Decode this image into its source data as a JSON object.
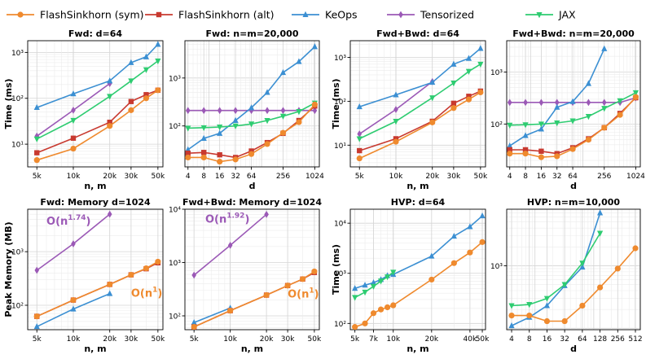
{
  "legend": [
    {
      "key": "sym",
      "label": "FlashSinkhorn (sym)",
      "color": "#ef8a2e",
      "marker": "circle"
    },
    {
      "key": "alt",
      "label": "FlashSinkhorn (alt)",
      "color": "#c8392f",
      "marker": "square"
    },
    {
      "key": "keops",
      "label": "KeOps",
      "color": "#3b8fd2",
      "marker": "triangle-up"
    },
    {
      "key": "tens",
      "label": "Tensorized",
      "color": "#9b59b6",
      "marker": "diamond"
    },
    {
      "key": "jax",
      "label": "JAX",
      "color": "#2ecc71",
      "marker": "triangle-down"
    }
  ],
  "chart_data": [
    {
      "type": "line",
      "title": "Fwd: d=64",
      "xlabel": "n, m",
      "ylabel": "Time (ms)",
      "xscale": "log",
      "yscale": "log",
      "xlim": [
        4200,
        55000
      ],
      "ylim": [
        3.2,
        1800
      ],
      "xticks": [
        {
          "v": 5000,
          "label": "5k"
        },
        {
          "v": 10000,
          "label": "10k"
        },
        {
          "v": 20000,
          "label": "20k"
        },
        {
          "v": 30000,
          "label": "30k"
        },
        {
          "v": 50000,
          "label": "50k"
        }
      ],
      "yticks": [
        {
          "v": 10,
          "label": "10¹"
        },
        {
          "v": 100,
          "label": "10²"
        },
        {
          "v": 1000,
          "label": "10³"
        }
      ],
      "series": [
        {
          "key": "tens",
          "x": [
            5000,
            10000,
            20000
          ],
          "y": [
            15,
            55,
            210
          ]
        },
        {
          "key": "keops",
          "x": [
            5000,
            10000,
            20000,
            30000,
            40000,
            50000
          ],
          "y": [
            63,
            125,
            240,
            600,
            800,
            1500
          ]
        },
        {
          "key": "jax",
          "x": [
            5000,
            10000,
            20000,
            30000,
            40000,
            50000
          ],
          "y": [
            13,
            33,
            110,
            240,
            420,
            650
          ]
        },
        {
          "key": "alt",
          "x": [
            5000,
            10000,
            20000,
            30000,
            40000,
            50000
          ],
          "y": [
            6.5,
            13.5,
            30,
            85,
            120,
            150
          ]
        },
        {
          "key": "sym",
          "x": [
            5000,
            10000,
            20000,
            30000,
            40000,
            50000
          ],
          "y": [
            4.5,
            8,
            25,
            55,
            100,
            150
          ]
        }
      ]
    },
    {
      "type": "line",
      "title": "Fwd: n=m=20,000",
      "xlabel": "d",
      "ylabel": "",
      "xscale": "log",
      "yscale": "log",
      "xlim": [
        3.5,
        1250
      ],
      "ylim": [
        14,
        6000
      ],
      "xticks": [
        {
          "v": 4,
          "label": "4"
        },
        {
          "v": 8,
          "label": "8"
        },
        {
          "v": 16,
          "label": "16"
        },
        {
          "v": 32,
          "label": "32"
        },
        {
          "v": 64,
          "label": "64"
        },
        {
          "v": 256,
          "label": "256"
        },
        {
          "v": 1024,
          "label": "1024"
        }
      ],
      "yticks": [
        {
          "v": 100,
          "label": "10²"
        },
        {
          "v": 1000,
          "label": "10³"
        }
      ],
      "series": [
        {
          "key": "tens",
          "x": [
            4,
            8,
            16,
            32,
            64,
            128,
            256,
            512,
            1024
          ],
          "y": [
            210,
            210,
            210,
            210,
            210,
            210,
            210,
            210,
            210
          ]
        },
        {
          "key": "keops",
          "x": [
            4,
            8,
            16,
            32,
            64,
            128,
            256,
            512,
            1024
          ],
          "y": [
            32,
            55,
            70,
            130,
            240,
            500,
            1300,
            2200,
            4500
          ]
        },
        {
          "key": "jax",
          "x": [
            4,
            8,
            16,
            32,
            64,
            128,
            256,
            512,
            1024
          ],
          "y": [
            90,
            92,
            95,
            100,
            110,
            130,
            160,
            200,
            300
          ]
        },
        {
          "key": "alt",
          "x": [
            4,
            8,
            16,
            32,
            64,
            128,
            256,
            512,
            1024
          ],
          "y": [
            27,
            28,
            25,
            22,
            30,
            45,
            70,
            130,
            260
          ]
        },
        {
          "key": "sym",
          "x": [
            4,
            8,
            16,
            32,
            64,
            128,
            256,
            512,
            1024
          ],
          "y": [
            22,
            22,
            18,
            20,
            26,
            42,
            72,
            120,
            280
          ]
        }
      ]
    },
    {
      "type": "line",
      "title": "Fwd+Bwd: d=64",
      "xlabel": "n, m",
      "ylabel": "Time (ms)",
      "xscale": "log",
      "yscale": "log",
      "xlim": [
        4200,
        55000
      ],
      "ylim": [
        3.2,
        2400
      ],
      "xticks": [
        {
          "v": 5000,
          "label": "5k"
        },
        {
          "v": 10000,
          "label": "10k"
        },
        {
          "v": 20000,
          "label": "20k"
        },
        {
          "v": 30000,
          "label": "30k"
        },
        {
          "v": 50000,
          "label": "50k"
        }
      ],
      "yticks": [
        {
          "v": 10,
          "label": "10¹"
        },
        {
          "v": 100,
          "label": "10²"
        },
        {
          "v": 1000,
          "label": "10³"
        }
      ],
      "series": [
        {
          "key": "tens",
          "x": [
            5000,
            10000,
            20000
          ],
          "y": [
            18,
            65,
            280
          ]
        },
        {
          "key": "keops",
          "x": [
            5000,
            10000,
            20000,
            30000,
            40000,
            50000
          ],
          "y": [
            75,
            140,
            270,
            700,
            950,
            1600
          ]
        },
        {
          "key": "jax",
          "x": [
            5000,
            10000,
            20000,
            30000,
            40000,
            50000
          ],
          "y": [
            14,
            35,
            120,
            260,
            480,
            700
          ]
        },
        {
          "key": "alt",
          "x": [
            5000,
            10000,
            20000,
            30000,
            40000,
            50000
          ],
          "y": [
            7.5,
            14,
            35,
            90,
            130,
            170
          ]
        },
        {
          "key": "sym",
          "x": [
            5000,
            10000,
            20000,
            30000,
            40000,
            50000
          ],
          "y": [
            5,
            12,
            33,
            70,
            110,
            160
          ]
        }
      ]
    },
    {
      "type": "line",
      "title": "Fwd+Bwd: n=m=20,000",
      "xlabel": "d",
      "ylabel": "",
      "xscale": "log",
      "yscale": "log",
      "xlim": [
        3.5,
        1250
      ],
      "ylim": [
        15,
        4000
      ],
      "xticks": [
        {
          "v": 4,
          "label": "4"
        },
        {
          "v": 8,
          "label": "8"
        },
        {
          "v": 16,
          "label": "16"
        },
        {
          "v": 32,
          "label": "32"
        },
        {
          "v": 64,
          "label": "64"
        },
        {
          "v": 256,
          "label": "256"
        },
        {
          "v": 1024,
          "label": "1024"
        }
      ],
      "yticks": [
        {
          "v": 100,
          "label": "10²"
        },
        {
          "v": 1000,
          "label": "10³"
        }
      ],
      "series": [
        {
          "key": "tens",
          "x": [
            4,
            8,
            16,
            32,
            64,
            128,
            256,
            512,
            1024
          ],
          "y": [
            260,
            260,
            260,
            260,
            260,
            260,
            260,
            260,
            320
          ]
        },
        {
          "key": "keops",
          "x": [
            4,
            8,
            16,
            32,
            64,
            128,
            256
          ],
          "y": [
            38,
            60,
            80,
            210,
            270,
            600,
            2800
          ]
        },
        {
          "key": "jax",
          "x": [
            4,
            8,
            16,
            32,
            64,
            128,
            256,
            512,
            1024
          ],
          "y": [
            95,
            97,
            100,
            105,
            115,
            140,
            200,
            280,
            400
          ]
        },
        {
          "key": "alt",
          "x": [
            4,
            8,
            16,
            32,
            64,
            128,
            256,
            512,
            1024
          ],
          "y": [
            32,
            32,
            30,
            27,
            35,
            52,
            85,
            160,
            320
          ]
        },
        {
          "key": "sym",
          "x": [
            4,
            8,
            16,
            32,
            64,
            128,
            256,
            512,
            1024
          ],
          "y": [
            27,
            27,
            23,
            24,
            33,
            50,
            85,
            150,
            330
          ]
        }
      ]
    },
    {
      "type": "line",
      "title": "Fwd: Memory d=1024",
      "xlabel": "n, m",
      "ylabel": "Peak Memory (MB)",
      "xscale": "log",
      "yscale": "log",
      "xlim": [
        4200,
        55000
      ],
      "ylim": [
        35,
        6200
      ],
      "xticks": [
        {
          "v": 5000,
          "label": "5k"
        },
        {
          "v": 10000,
          "label": "10k"
        },
        {
          "v": 20000,
          "label": "20k"
        },
        {
          "v": 30000,
          "label": "30k"
        },
        {
          "v": 50000,
          "label": "50k"
        }
      ],
      "yticks": [
        {
          "v": 100,
          "label": "10²"
        },
        {
          "v": 1000,
          "label": "10³"
        }
      ],
      "series": [
        {
          "key": "tens",
          "x": [
            5000,
            10000,
            20000
          ],
          "y": [
            450,
            1400,
            5000
          ]
        },
        {
          "key": "keops",
          "x": [
            5000,
            10000,
            20000
          ],
          "y": [
            40,
            85,
            165
          ]
        },
        {
          "key": "alt",
          "x": [
            5000,
            10000,
            20000,
            30000,
            40000,
            50000
          ],
          "y": [
            62,
            125,
            245,
            370,
            480,
            620
          ]
        },
        {
          "key": "sym",
          "x": [
            5000,
            10000,
            20000,
            30000,
            40000,
            50000
          ],
          "y": [
            62,
            125,
            245,
            370,
            490,
            650
          ]
        }
      ],
      "annotations": [
        {
          "text": "O(n",
          "sup": "1.74",
          "close": ")",
          "color": "#9b59b6",
          "at": [
            6000,
            3200
          ]
        },
        {
          "text": "O(n",
          "sup": "1",
          "close": ")",
          "color": "#ef8a2e",
          "at": [
            30000,
            145
          ]
        }
      ]
    },
    {
      "type": "line",
      "title": "Fwd+Bwd: Memory d=1024",
      "xlabel": "n, m",
      "ylabel": "",
      "xscale": "log",
      "yscale": "log",
      "xlim": [
        4200,
        55000
      ],
      "ylim": [
        55,
        10000
      ],
      "xticks": [
        {
          "v": 5000,
          "label": "5k"
        },
        {
          "v": 10000,
          "label": "10k"
        },
        {
          "v": 20000,
          "label": "20k"
        },
        {
          "v": 30000,
          "label": "30k"
        },
        {
          "v": 50000,
          "label": "50k"
        }
      ],
      "yticks": [
        {
          "v": 100,
          "label": "10²"
        },
        {
          "v": 1000,
          "label": "10³"
        },
        {
          "v": 10000,
          "label": "10⁴"
        }
      ],
      "series": [
        {
          "key": "tens",
          "x": [
            5000,
            10000,
            20000
          ],
          "y": [
            580,
            2100,
            8000
          ]
        },
        {
          "key": "keops",
          "x": [
            5000,
            10000
          ],
          "y": [
            75,
            140
          ]
        },
        {
          "key": "alt",
          "x": [
            5000,
            10000,
            20000,
            30000,
            40000,
            50000
          ],
          "y": [
            62,
            125,
            245,
            370,
            490,
            650
          ]
        },
        {
          "key": "sym",
          "x": [
            5000,
            10000,
            20000,
            30000,
            40000,
            50000
          ],
          "y": [
            62,
            125,
            245,
            370,
            490,
            680
          ]
        }
      ],
      "annotations": [
        {
          "text": "O(n",
          "sup": "1.92",
          "close": ")",
          "color": "#9b59b6",
          "at": [
            6200,
            5600
          ]
        },
        {
          "text": "O(n",
          "sup": "1",
          "close": ")",
          "color": "#ef8a2e",
          "at": [
            30000,
            220
          ]
        }
      ]
    },
    {
      "type": "line",
      "title": "HVP: d=64",
      "xlabel": "n, m",
      "ylabel": "Time (ms)",
      "xscale": "log",
      "yscale": "log",
      "xlim": [
        4600,
        53000
      ],
      "ylim": [
        75,
        19000
      ],
      "xticks": [
        {
          "v": 5000,
          "label": "5k"
        },
        {
          "v": 7000,
          "label": "7k"
        },
        {
          "v": 10000,
          "label": "10k"
        },
        {
          "v": 20000,
          "label": "20k"
        },
        {
          "v": 40000,
          "label": "40k"
        },
        {
          "v": 50000,
          "label": "50k"
        }
      ],
      "yticks": [
        {
          "v": 100,
          "label": "10²"
        },
        {
          "v": 1000,
          "label": "10³"
        },
        {
          "v": 10000,
          "label": "10⁴"
        }
      ],
      "series": [
        {
          "key": "keops",
          "x": [
            5000,
            6000,
            7000,
            8000,
            9000,
            10000,
            20000,
            30000,
            40000,
            50000
          ],
          "y": [
            500,
            580,
            650,
            750,
            900,
            950,
            2200,
            5500,
            8500,
            14000
          ]
        },
        {
          "key": "jax",
          "x": [
            5000,
            6000,
            7000,
            8000,
            9000,
            10000
          ],
          "y": [
            330,
            420,
            550,
            700,
            850,
            1050
          ]
        },
        {
          "key": "sym",
          "x": [
            5000,
            6000,
            7000,
            8000,
            9000,
            10000,
            20000,
            30000,
            40000,
            50000
          ],
          "y": [
            85,
            100,
            160,
            190,
            210,
            230,
            750,
            1600,
            2600,
            4200
          ]
        }
      ]
    },
    {
      "type": "line",
      "title": "HVP: n=m=10,000",
      "xlabel": "d",
      "ylabel": "",
      "xscale": "log",
      "yscale": "log",
      "xlim": [
        3.3,
        620
      ],
      "ylim": [
        95,
        8000
      ],
      "xticks": [
        {
          "v": 4,
          "label": "4"
        },
        {
          "v": 8,
          "label": "8"
        },
        {
          "v": 16,
          "label": "16"
        },
        {
          "v": 32,
          "label": "32"
        },
        {
          "v": 64,
          "label": "64"
        },
        {
          "v": 128,
          "label": "128"
        },
        {
          "v": 256,
          "label": "256"
        },
        {
          "v": 512,
          "label": "512"
        }
      ],
      "yticks": [
        {
          "v": 1000,
          "label": "10³"
        }
      ],
      "series": [
        {
          "key": "keops",
          "x": [
            4,
            8,
            16,
            32,
            64,
            128
          ],
          "y": [
            110,
            150,
            230,
            480,
            950,
            7000
          ]
        },
        {
          "key": "jax",
          "x": [
            4,
            8,
            16,
            32,
            64,
            128
          ],
          "y": [
            230,
            240,
            300,
            500,
            1100,
            3300
          ]
        },
        {
          "key": "sym",
          "x": [
            4,
            8,
            16,
            32,
            64,
            128,
            256,
            512
          ],
          "y": [
            160,
            160,
            130,
            130,
            230,
            450,
            900,
            1900
          ]
        }
      ]
    }
  ]
}
